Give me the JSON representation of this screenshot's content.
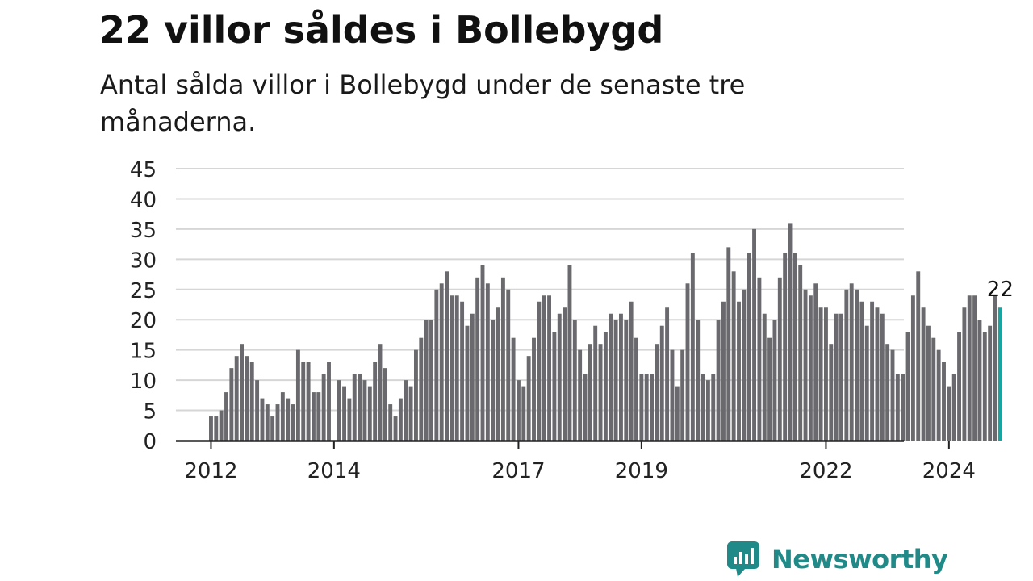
{
  "title": "22 villor såldes i Bollebygd",
  "subtitle": "Antal sålda villor i Bollebygd under de senaste tre månaderna.",
  "brand": {
    "name": "Newsworthy",
    "icon": "newsworthy-logo-icon"
  },
  "colors": {
    "bar": "#6a6a6e",
    "highlight": "#1aa3a0",
    "grid": "#d6d6d6",
    "axis": "#222222",
    "text": "#111111",
    "brand": "#1f8a87"
  },
  "chart_data": {
    "type": "bar",
    "ylim": [
      0,
      45
    ],
    "yticks": [
      "0",
      "5",
      "10",
      "15",
      "20",
      "25",
      "30",
      "35",
      "40",
      "45"
    ],
    "xticks": [
      "2012",
      "2014",
      "2017",
      "2019",
      "2022",
      "2024"
    ],
    "grid": true,
    "last_label": "22",
    "first_month": "2012-01",
    "values": [
      4,
      4,
      5,
      8,
      12,
      14,
      16,
      14,
      13,
      10,
      7,
      6,
      4,
      6,
      8,
      7,
      6,
      15,
      13,
      13,
      8,
      8,
      11,
      13,
      0,
      10,
      9,
      7,
      11,
      11,
      10,
      9,
      13,
      16,
      12,
      6,
      4,
      7,
      10,
      9,
      15,
      17,
      20,
      20,
      25,
      26,
      28,
      24,
      24,
      23,
      19,
      21,
      27,
      29,
      26,
      20,
      22,
      27,
      25,
      17,
      10,
      9,
      14,
      17,
      23,
      24,
      24,
      18,
      21,
      22,
      29,
      20,
      15,
      11,
      16,
      19,
      16,
      18,
      21,
      20,
      21,
      20,
      23,
      17,
      11,
      11,
      11,
      16,
      19,
      22,
      15,
      9,
      15,
      26,
      31,
      20,
      11,
      10,
      11,
      20,
      23,
      32,
      28,
      23,
      25,
      31,
      35,
      27,
      21,
      17,
      20,
      27,
      31,
      36,
      31,
      29,
      25,
      24,
      26,
      22,
      22,
      16,
      21,
      21,
      25,
      26,
      25,
      23,
      19,
      23,
      22,
      21,
      16,
      15,
      11,
      11,
      18,
      24,
      28,
      22,
      19,
      17,
      15,
      13,
      9,
      11,
      18,
      22,
      24,
      24,
      20,
      18,
      19,
      24,
      22
    ]
  }
}
